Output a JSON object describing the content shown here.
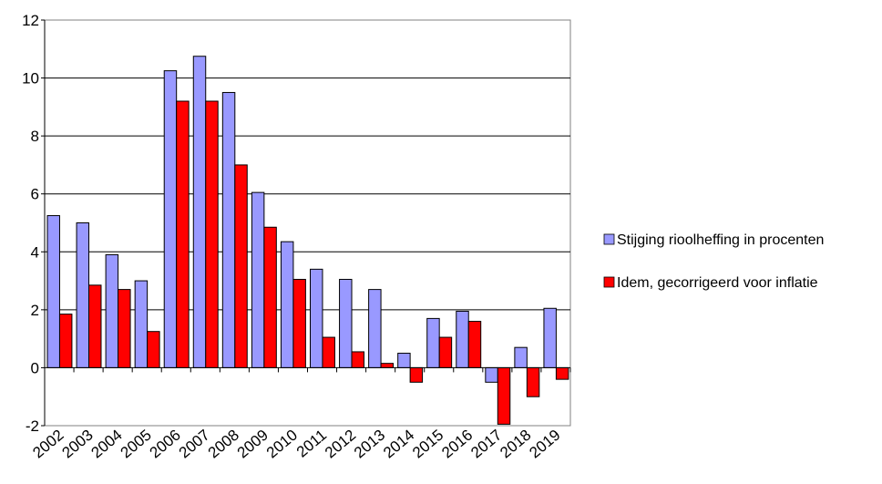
{
  "chart_data": {
    "type": "bar",
    "categories": [
      "2002",
      "2003",
      "2004",
      "2005",
      "2006",
      "2007",
      "2008",
      "2009",
      "2010",
      "2011",
      "2012",
      "2013",
      "2014",
      "2015",
      "2016",
      "2017",
      "2018",
      "2019"
    ],
    "series": [
      {
        "name": "Stijging rioolheffing in procenten",
        "color": "#9999ff",
        "values": [
          5.25,
          5.0,
          3.9,
          3.0,
          10.25,
          10.75,
          9.5,
          6.05,
          4.35,
          3.4,
          3.05,
          2.7,
          0.5,
          1.7,
          1.95,
          -0.5,
          0.7,
          2.05
        ]
      },
      {
        "name": "Idem, gecorrigeerd voor inflatie",
        "color": "#ff0000",
        "values": [
          1.85,
          2.85,
          2.7,
          1.25,
          9.2,
          9.2,
          7.0,
          4.85,
          3.05,
          1.05,
          0.55,
          0.15,
          -0.5,
          1.05,
          1.6,
          -1.95,
          -1.0,
          -0.4
        ]
      }
    ],
    "yticks": [
      "12",
      "10",
      "8",
      "6",
      "4",
      "2",
      "0",
      "-2"
    ],
    "ylim": [
      -2,
      12
    ],
    "grid": true,
    "legend": "right"
  }
}
